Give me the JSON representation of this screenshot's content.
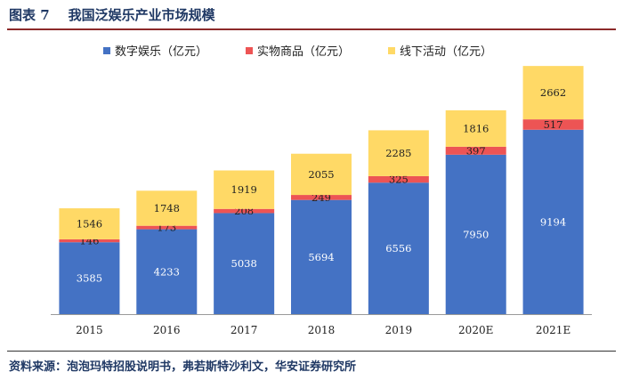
{
  "header": {
    "figure_label": "图表 7",
    "title": "我国泛娱乐产业市场规模"
  },
  "footer": {
    "source": "资料来源：泡泡玛特招股说明书，弗若斯特沙利文，华安证券研究所"
  },
  "colors": {
    "digital": "#4472c4",
    "physical": "#ed5454",
    "offline": "#ffd966",
    "title": "#1f3864"
  },
  "chart_data": {
    "type": "bar",
    "stacked": true,
    "title": "我国泛娱乐产业市场规模",
    "xlabel": "",
    "ylabel": "",
    "categories": [
      "2015",
      "2016",
      "2017",
      "2018",
      "2019",
      "2020E",
      "2021E"
    ],
    "series": [
      {
        "name": "数字娱乐（亿元）",
        "values": [
          3585,
          4233,
          5038,
          5694,
          6556,
          7950,
          9194
        ]
      },
      {
        "name": "实物商品（亿元）",
        "values": [
          146,
          173,
          208,
          249,
          325,
          397,
          517
        ]
      },
      {
        "name": "线下活动（亿元）",
        "values": [
          1546,
          1748,
          1919,
          2055,
          2285,
          1816,
          2662
        ]
      }
    ],
    "legend_position": "top",
    "grid": false,
    "ylim": [
      0,
      13000
    ]
  }
}
